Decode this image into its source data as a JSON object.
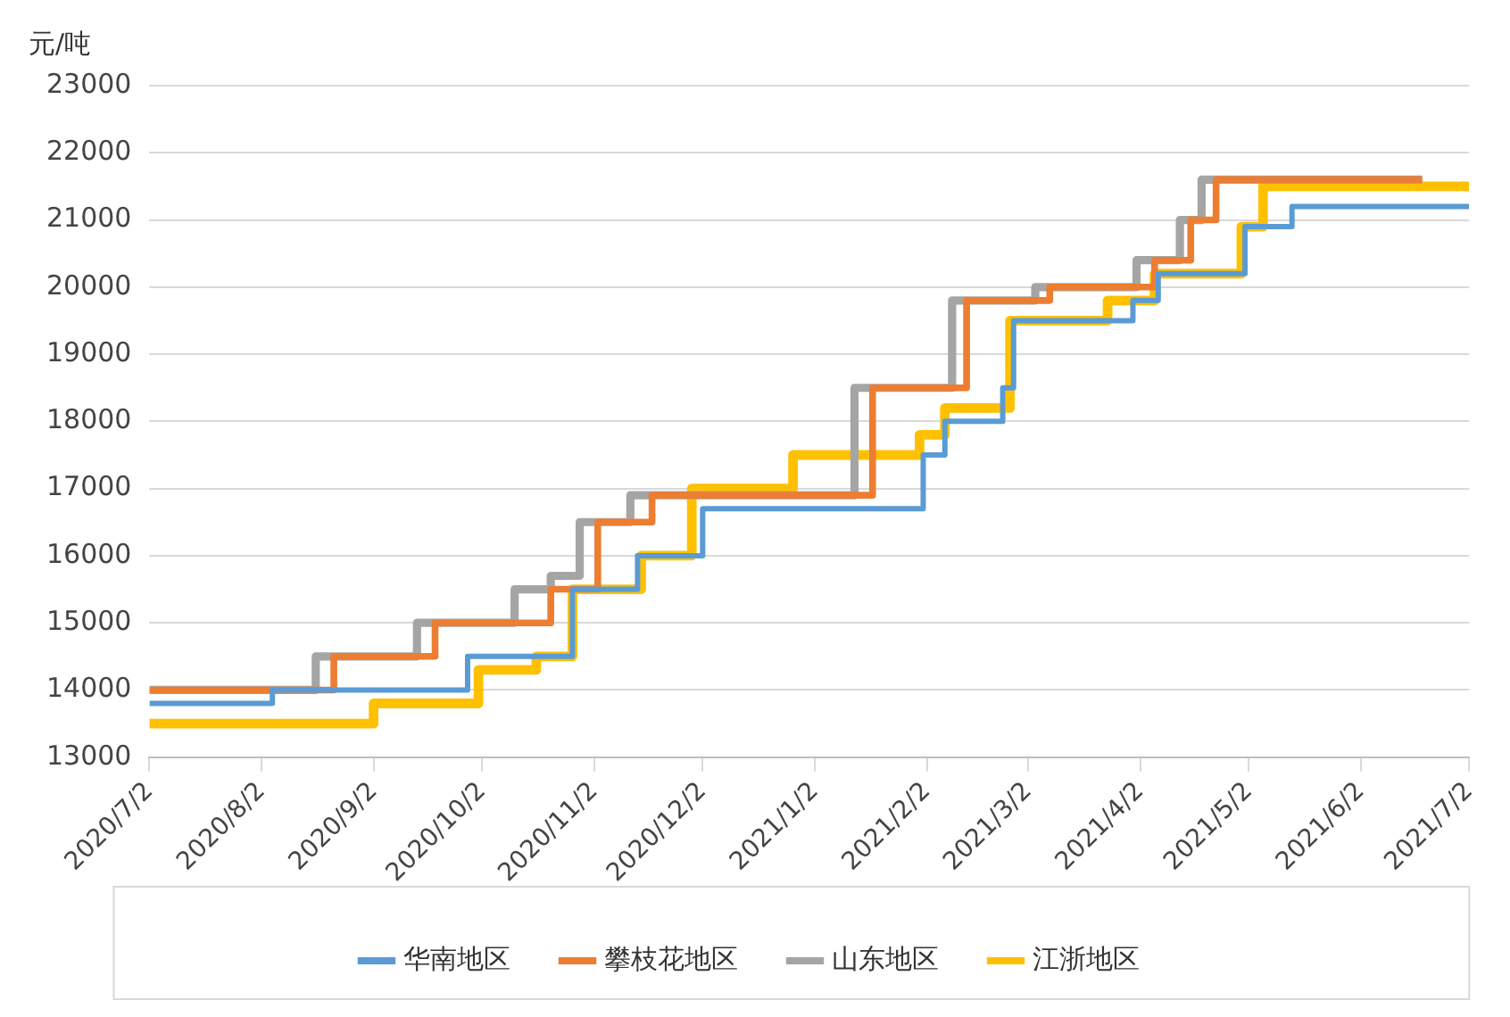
{
  "chart_data": {
    "type": "step",
    "ylabel": "元/吨",
    "xlim": [
      "2020-07-02",
      "2021-07-02"
    ],
    "xticks": [
      {
        "value": "2020-07-02",
        "label": "2020/7/2"
      },
      {
        "value": "2020-08-02",
        "label": "2020/8/2"
      },
      {
        "value": "2020-09-02",
        "label": "2020/9/2"
      },
      {
        "value": "2020-10-02",
        "label": "2020/10/2"
      },
      {
        "value": "2020-11-02",
        "label": "2020/11/2"
      },
      {
        "value": "2020-12-02",
        "label": "2020/12/2"
      },
      {
        "value": "2021-01-02",
        "label": "2021/1/2"
      },
      {
        "value": "2021-02-02",
        "label": "2021/2/2"
      },
      {
        "value": "2021-03-02",
        "label": "2021/3/2"
      },
      {
        "value": "2021-04-02",
        "label": "2021/4/2"
      },
      {
        "value": "2021-05-02",
        "label": "2021/5/2"
      },
      {
        "value": "2021-06-02",
        "label": "2021/6/2"
      },
      {
        "value": "2021-07-02",
        "label": "2021/7/2"
      }
    ],
    "ylim": [
      13000,
      23000
    ],
    "yticks": [
      13000,
      14000,
      15000,
      16000,
      17000,
      18000,
      19000,
      20000,
      21000,
      22000,
      23000
    ],
    "grid": "y",
    "legend": "bottom",
    "marker": "none",
    "line_style": "solid",
    "series": [
      {
        "name": "华南地区",
        "color": "#5b9bd5",
        "x": [
          "2020-07-02",
          "2020-08-05",
          "2020-09-28",
          "2020-10-27",
          "2020-11-14",
          "2020-12-02",
          "2021-02-01",
          "2021-02-07",
          "2021-02-23",
          "2021-02-26",
          "2021-03-31",
          "2021-04-07",
          "2021-05-01",
          "2021-05-14",
          "2021-07-02"
        ],
        "values": [
          13800,
          14000,
          14500,
          15500,
          16000,
          16700,
          17500,
          18000,
          18500,
          19500,
          19800,
          20200,
          20900,
          21200,
          21200
        ]
      },
      {
        "name": "攀枝花地区",
        "color": "#ed7d31",
        "x": [
          "2020-07-02",
          "2020-08-22",
          "2020-09-19",
          "2020-10-21",
          "2020-11-03",
          "2020-11-18",
          "2021-01-18",
          "2021-02-13",
          "2021-03-08",
          "2021-04-06",
          "2021-04-16",
          "2021-04-23",
          "2021-06-19"
        ],
        "values": [
          14000,
          14500,
          15000,
          15500,
          16500,
          16900,
          18500,
          19800,
          20000,
          20400,
          21000,
          21600,
          21600
        ]
      },
      {
        "name": "山东地区",
        "color": "#a5a5a5",
        "x": [
          "2020-07-02",
          "2020-08-17",
          "2020-09-14",
          "2020-10-11",
          "2020-10-21",
          "2020-10-29",
          "2020-11-12",
          "2021-01-13",
          "2021-02-09",
          "2021-03-04",
          "2021-04-01",
          "2021-04-13",
          "2021-04-19",
          "2021-06-19"
        ],
        "values": [
          14000,
          14500,
          15000,
          15500,
          15700,
          16500,
          16900,
          18500,
          19800,
          20000,
          20400,
          21000,
          21600,
          21600
        ]
      },
      {
        "name": "江浙地区",
        "color": "#ffc000",
        "x": [
          "2020-07-02",
          "2020-09-02",
          "2020-10-01",
          "2020-10-17",
          "2020-10-27",
          "2020-11-15",
          "2020-11-29",
          "2020-12-27",
          "2021-01-31",
          "2021-02-07",
          "2021-02-25",
          "2021-03-24",
          "2021-04-06",
          "2021-04-30",
          "2021-05-06",
          "2021-07-02"
        ],
        "values": [
          13500,
          13800,
          14300,
          14500,
          15500,
          16000,
          17000,
          17500,
          17800,
          18200,
          19500,
          19800,
          20200,
          20900,
          21500,
          21500
        ]
      }
    ]
  }
}
